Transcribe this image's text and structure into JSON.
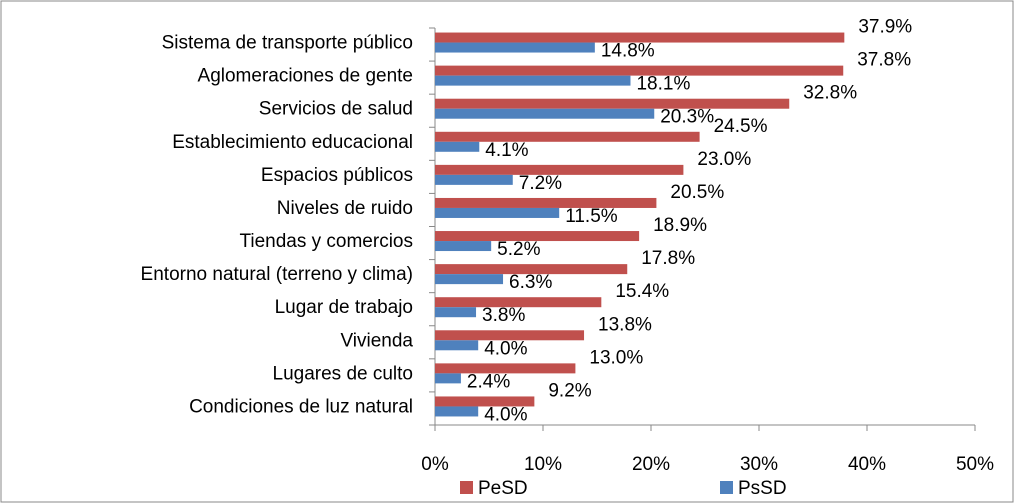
{
  "chart_data": {
    "type": "hbar",
    "categories": [
      "Sistema de transporte público",
      "Aglomeraciones de gente",
      "Servicios de salud",
      "Establecimiento educacional",
      "Espacios públicos",
      "Niveles de ruido",
      "Tiendas y comercios",
      "Entorno natural (terreno y clima)",
      "Lugar de trabajo",
      "Vivienda",
      "Lugares de culto",
      "Condiciones de luz natural"
    ],
    "series": [
      {
        "name": "PeSD",
        "color": "#c0504d",
        "values": [
          37.9,
          37.8,
          32.8,
          24.5,
          23.0,
          20.5,
          18.9,
          17.8,
          15.4,
          13.8,
          13.0,
          9.2
        ],
        "value_labels": [
          "37.9%",
          "37.8%",
          "32.8%",
          "24.5%",
          "23.0%",
          "20.5%",
          "18.9%",
          "17.8%",
          "15.4%",
          "13.8%",
          "13.0%",
          "9.2%"
        ]
      },
      {
        "name": "PsSD",
        "color": "#4f81bd",
        "values": [
          14.8,
          18.1,
          20.3,
          4.1,
          7.2,
          11.5,
          5.2,
          6.3,
          3.8,
          4.0,
          2.4,
          4.0
        ],
        "value_labels": [
          "14.8%",
          "18.1%",
          "20.3%",
          "4.1%",
          "7.2%",
          "11.5%",
          "5.2%",
          "6.3%",
          "3.8%",
          "4.0%",
          "2.4%",
          "4.0%"
        ]
      }
    ],
    "xlim": [
      0,
      50
    ],
    "xticks": [
      {
        "value": 0,
        "label": "0%"
      },
      {
        "value": 10,
        "label": "10%"
      },
      {
        "value": 20,
        "label": "20%"
      },
      {
        "value": 30,
        "label": "30%"
      },
      {
        "value": 40,
        "label": "40%"
      },
      {
        "value": 50,
        "label": "50%"
      }
    ],
    "grid": false,
    "legend": "bottom"
  }
}
